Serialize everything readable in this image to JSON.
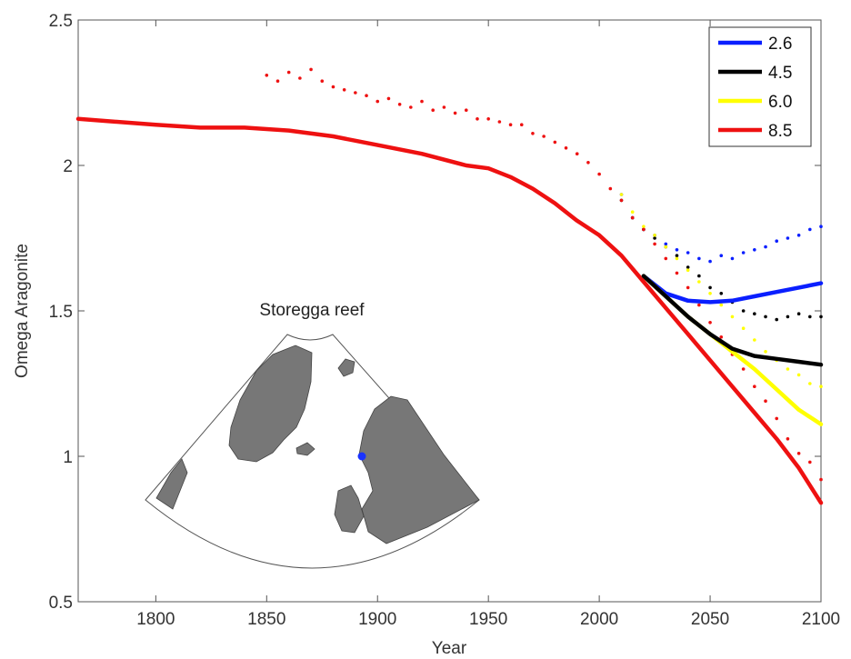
{
  "chart_data": {
    "type": "line",
    "xlabel": "Year",
    "ylabel": "Omega Aragonite",
    "xlim": [
      1765,
      2100
    ],
    "ylim": [
      0.5,
      2.5
    ],
    "x_ticks": [
      1800,
      1850,
      1900,
      1950,
      2000,
      2050,
      2100
    ],
    "y_ticks": [
      0.5,
      1,
      1.5,
      2,
      2.5
    ],
    "y_tick_labels": [
      "0.5",
      "1",
      "1.5",
      "2",
      "2.5"
    ],
    "grid": false,
    "legend_position": "top-right",
    "series": [
      {
        "name": "2.6",
        "color": "#0a1fff",
        "line": [
          [
            2020,
            1.62
          ],
          [
            2030,
            1.56
          ],
          [
            2040,
            1.535
          ],
          [
            2050,
            1.53
          ],
          [
            2060,
            1.535
          ],
          [
            2070,
            1.55
          ],
          [
            2080,
            1.565
          ],
          [
            2090,
            1.58
          ],
          [
            2100,
            1.595
          ]
        ],
        "scatter": [
          [
            2010,
            1.9
          ],
          [
            2015,
            1.82
          ],
          [
            2020,
            1.78
          ],
          [
            2025,
            1.76
          ],
          [
            2030,
            1.73
          ],
          [
            2035,
            1.71
          ],
          [
            2040,
            1.7
          ],
          [
            2045,
            1.68
          ],
          [
            2050,
            1.67
          ],
          [
            2055,
            1.69
          ],
          [
            2060,
            1.68
          ],
          [
            2065,
            1.7
          ],
          [
            2070,
            1.71
          ],
          [
            2075,
            1.72
          ],
          [
            2080,
            1.74
          ],
          [
            2085,
            1.75
          ],
          [
            2090,
            1.76
          ],
          [
            2095,
            1.78
          ],
          [
            2100,
            1.79
          ]
        ]
      },
      {
        "name": "4.5",
        "color": "#000000",
        "line": [
          [
            2020,
            1.62
          ],
          [
            2030,
            1.55
          ],
          [
            2040,
            1.48
          ],
          [
            2050,
            1.42
          ],
          [
            2060,
            1.37
          ],
          [
            2070,
            1.345
          ],
          [
            2080,
            1.335
          ],
          [
            2090,
            1.325
          ],
          [
            2100,
            1.315
          ]
        ],
        "scatter": [
          [
            2010,
            1.88
          ],
          [
            2015,
            1.82
          ],
          [
            2020,
            1.78
          ],
          [
            2025,
            1.75
          ],
          [
            2030,
            1.72
          ],
          [
            2035,
            1.69
          ],
          [
            2040,
            1.65
          ],
          [
            2045,
            1.62
          ],
          [
            2050,
            1.58
          ],
          [
            2055,
            1.56
          ],
          [
            2060,
            1.53
          ],
          [
            2065,
            1.5
          ],
          [
            2070,
            1.49
          ],
          [
            2075,
            1.48
          ],
          [
            2080,
            1.47
          ],
          [
            2085,
            1.48
          ],
          [
            2090,
            1.49
          ],
          [
            2095,
            1.48
          ],
          [
            2100,
            1.48
          ]
        ]
      },
      {
        "name": "6.0",
        "color": "#ffff00",
        "line": [
          [
            2020,
            1.62
          ],
          [
            2030,
            1.55
          ],
          [
            2040,
            1.48
          ],
          [
            2050,
            1.42
          ],
          [
            2060,
            1.36
          ],
          [
            2070,
            1.3
          ],
          [
            2080,
            1.23
          ],
          [
            2090,
            1.16
          ],
          [
            2100,
            1.11
          ]
        ],
        "scatter": [
          [
            2010,
            1.9
          ],
          [
            2015,
            1.84
          ],
          [
            2020,
            1.79
          ],
          [
            2025,
            1.76
          ],
          [
            2030,
            1.72
          ],
          [
            2035,
            1.68
          ],
          [
            2040,
            1.64
          ],
          [
            2045,
            1.6
          ],
          [
            2050,
            1.56
          ],
          [
            2055,
            1.52
          ],
          [
            2060,
            1.48
          ],
          [
            2065,
            1.44
          ],
          [
            2070,
            1.4
          ],
          [
            2075,
            1.36
          ],
          [
            2080,
            1.33
          ],
          [
            2085,
            1.3
          ],
          [
            2090,
            1.28
          ],
          [
            2095,
            1.25
          ],
          [
            2100,
            1.24
          ]
        ]
      },
      {
        "name": "8.5",
        "color": "#ee1111",
        "line": [
          [
            1765,
            2.16
          ],
          [
            1800,
            2.14
          ],
          [
            1820,
            2.13
          ],
          [
            1840,
            2.13
          ],
          [
            1860,
            2.12
          ],
          [
            1880,
            2.1
          ],
          [
            1900,
            2.07
          ],
          [
            1920,
            2.04
          ],
          [
            1940,
            2.0
          ],
          [
            1950,
            1.99
          ],
          [
            1960,
            1.96
          ],
          [
            1970,
            1.92
          ],
          [
            1980,
            1.87
          ],
          [
            1990,
            1.81
          ],
          [
            2000,
            1.76
          ],
          [
            2010,
            1.69
          ],
          [
            2020,
            1.6
          ],
          [
            2030,
            1.51
          ],
          [
            2040,
            1.42
          ],
          [
            2050,
            1.33
          ],
          [
            2060,
            1.24
          ],
          [
            2070,
            1.15
          ],
          [
            2080,
            1.06
          ],
          [
            2090,
            0.96
          ],
          [
            2100,
            0.84
          ]
        ],
        "scatter": [
          [
            1850,
            2.31
          ],
          [
            1855,
            2.29
          ],
          [
            1860,
            2.32
          ],
          [
            1865,
            2.3
          ],
          [
            1870,
            2.33
          ],
          [
            1875,
            2.29
          ],
          [
            1880,
            2.27
          ],
          [
            1885,
            2.26
          ],
          [
            1890,
            2.25
          ],
          [
            1895,
            2.24
          ],
          [
            1900,
            2.22
          ],
          [
            1905,
            2.23
          ],
          [
            1910,
            2.21
          ],
          [
            1915,
            2.2
          ],
          [
            1920,
            2.22
          ],
          [
            1925,
            2.19
          ],
          [
            1930,
            2.2
          ],
          [
            1935,
            2.18
          ],
          [
            1940,
            2.19
          ],
          [
            1945,
            2.16
          ],
          [
            1950,
            2.16
          ],
          [
            1955,
            2.15
          ],
          [
            1960,
            2.14
          ],
          [
            1965,
            2.14
          ],
          [
            1970,
            2.11
          ],
          [
            1975,
            2.1
          ],
          [
            1980,
            2.08
          ],
          [
            1985,
            2.06
          ],
          [
            1990,
            2.04
          ],
          [
            1995,
            2.01
          ],
          [
            2000,
            1.97
          ],
          [
            2005,
            1.92
          ],
          [
            2010,
            1.88
          ],
          [
            2015,
            1.82
          ],
          [
            2020,
            1.78
          ],
          [
            2025,
            1.73
          ],
          [
            2030,
            1.68
          ],
          [
            2035,
            1.63
          ],
          [
            2040,
            1.58
          ],
          [
            2045,
            1.52
          ],
          [
            2050,
            1.46
          ],
          [
            2055,
            1.41
          ],
          [
            2060,
            1.35
          ],
          [
            2065,
            1.3
          ],
          [
            2070,
            1.24
          ],
          [
            2075,
            1.19
          ],
          [
            2080,
            1.13
          ],
          [
            2085,
            1.06
          ],
          [
            2090,
            1.01
          ],
          [
            2095,
            0.98
          ],
          [
            2100,
            0.92
          ]
        ]
      }
    ],
    "inset": {
      "title": "Storegga reef",
      "marker_color": "#1a33ff"
    }
  }
}
